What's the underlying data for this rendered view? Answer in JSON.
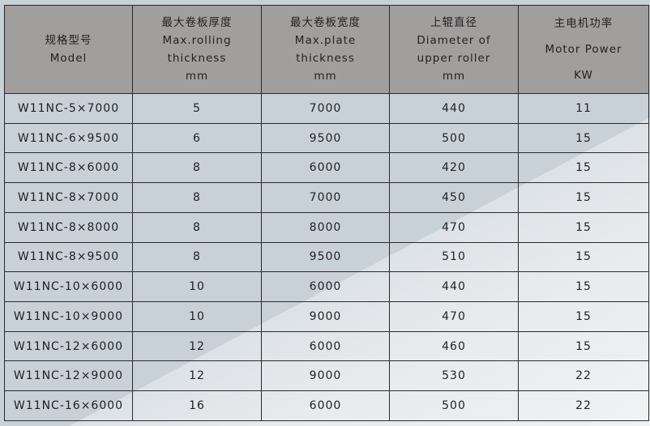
{
  "table": {
    "headers": [
      [
        "规格型号",
        "Model"
      ],
      [
        "最大卷板厚度",
        "Max.rolling",
        "thickness",
        "mm"
      ],
      [
        "最大卷板宽度",
        "Max.plate",
        "thickness",
        "mm"
      ],
      [
        "上辊直径",
        "Diameter of",
        "upper roller",
        "mm"
      ],
      [
        "主电机功率",
        "Motor Power",
        "KW"
      ]
    ],
    "rows": [
      [
        "W11NC-5×7000",
        "5",
        "7000",
        "440",
        "11"
      ],
      [
        "W11NC-6×9500",
        "6",
        "9500",
        "500",
        "15"
      ],
      [
        "W11NC-8×6000",
        "8",
        "6000",
        "420",
        "15"
      ],
      [
        "W11NC-8×7000",
        "8",
        "7000",
        "450",
        "15"
      ],
      [
        "W11NC-8×8000",
        "8",
        "8000",
        "470",
        "15"
      ],
      [
        "W11NC-8×9500",
        "8",
        "9500",
        "510",
        "15"
      ],
      [
        "W11NC-10×6000",
        "10",
        "6000",
        "440",
        "15"
      ],
      [
        "W11NC-10×9000",
        "10",
        "9000",
        "470",
        "15"
      ],
      [
        "W11NC-12×6000",
        "12",
        "6000",
        "460",
        "15"
      ],
      [
        "W11NC-12×9000",
        "12",
        "9000",
        "530",
        "22"
      ],
      [
        "W11NC-16×6000",
        "16",
        "6000",
        "500",
        "22"
      ]
    ]
  }
}
